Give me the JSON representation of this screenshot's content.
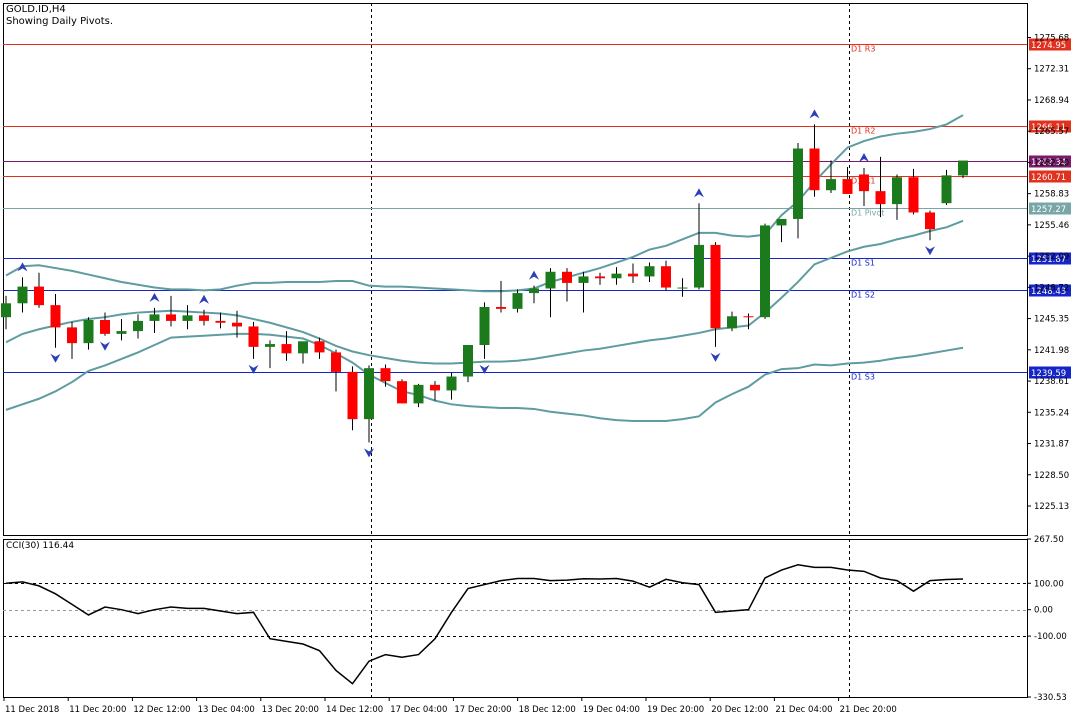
{
  "header": {
    "symbol": "GOLD.ID,H4",
    "subtitle": "Showing Daily Pivots."
  },
  "colors": {
    "bull": "#1b7a1b",
    "bear": "#ff0000",
    "wick": "#000000",
    "band": "#5e9ca0",
    "resistance": "#e0301e",
    "support": "#1525c8",
    "pivot": "#78a6a6",
    "cci_line": "#000000",
    "frame": "#000000",
    "fractal": "#2a3fb8",
    "r2_marker": "#7a1a6a"
  },
  "chart_data": [
    {
      "type": "candlestick",
      "title": "GOLD.ID,H4",
      "ylim": [
        1222.0,
        1279.4
      ],
      "y_ticks": [
        "1275.68",
        "1272.31",
        "1268.94",
        "1265.57",
        "1262.20",
        "1258.83",
        "1255.46",
        "1252.09",
        "1248.72",
        "1245.35",
        "1241.98",
        "1238.61",
        "1235.24",
        "1231.87",
        "1228.50",
        "1225.13"
      ],
      "x_labels": [
        "11 Dec 2018",
        "11 Dec 20:00",
        "12 Dec 12:00",
        "13 Dec 04:00",
        "13 Dec 20:00",
        "14 Dec 12:00",
        "17 Dec 04:00",
        "17 Dec 20:00",
        "18 Dec 12:00",
        "19 Dec 04:00",
        "19 Dec 20:00",
        "20 Dec 12:00",
        "21 Dec 04:00",
        "21 Dec 20:00"
      ],
      "candles": [
        {
          "o": 1245.5,
          "h": 1247.8,
          "l": 1244.2,
          "c": 1247.0
        },
        {
          "o": 1247.0,
          "h": 1249.8,
          "l": 1246.0,
          "c": 1248.8
        },
        {
          "o": 1248.8,
          "h": 1250.3,
          "l": 1246.5,
          "c": 1246.8
        },
        {
          "o": 1246.8,
          "h": 1248.0,
          "l": 1242.2,
          "c": 1244.4
        },
        {
          "o": 1244.4,
          "h": 1245.0,
          "l": 1241.0,
          "c": 1242.7
        },
        {
          "o": 1242.7,
          "h": 1245.5,
          "l": 1242.0,
          "c": 1245.2
        },
        {
          "o": 1245.2,
          "h": 1246.0,
          "l": 1243.5,
          "c": 1243.7
        },
        {
          "o": 1243.7,
          "h": 1245.3,
          "l": 1243.0,
          "c": 1244.0
        },
        {
          "o": 1244.0,
          "h": 1245.8,
          "l": 1243.2,
          "c": 1245.1
        },
        {
          "o": 1245.1,
          "h": 1246.5,
          "l": 1243.8,
          "c": 1245.8
        },
        {
          "o": 1245.8,
          "h": 1247.8,
          "l": 1244.5,
          "c": 1245.1
        },
        {
          "o": 1245.1,
          "h": 1246.8,
          "l": 1244.2,
          "c": 1245.7
        },
        {
          "o": 1245.7,
          "h": 1246.3,
          "l": 1244.6,
          "c": 1245.1
        },
        {
          "o": 1245.1,
          "h": 1246.0,
          "l": 1244.3,
          "c": 1244.9
        },
        {
          "o": 1244.9,
          "h": 1246.2,
          "l": 1243.3,
          "c": 1244.5
        },
        {
          "o": 1244.5,
          "h": 1245.0,
          "l": 1241.0,
          "c": 1242.3
        },
        {
          "o": 1242.3,
          "h": 1243.0,
          "l": 1240.0,
          "c": 1242.6
        },
        {
          "o": 1242.6,
          "h": 1244.0,
          "l": 1240.8,
          "c": 1241.6
        },
        {
          "o": 1241.6,
          "h": 1242.8,
          "l": 1240.5,
          "c": 1242.9
        },
        {
          "o": 1242.9,
          "h": 1243.3,
          "l": 1241.0,
          "c": 1241.7
        },
        {
          "o": 1241.7,
          "h": 1242.0,
          "l": 1237.5,
          "c": 1239.6
        },
        {
          "o": 1239.6,
          "h": 1240.2,
          "l": 1233.3,
          "c": 1234.5
        },
        {
          "o": 1234.5,
          "h": 1240.3,
          "l": 1232.0,
          "c": 1240.0
        },
        {
          "o": 1240.0,
          "h": 1240.4,
          "l": 1238.0,
          "c": 1238.6
        },
        {
          "o": 1238.6,
          "h": 1238.8,
          "l": 1236.2,
          "c": 1236.2
        },
        {
          "o": 1236.2,
          "h": 1238.3,
          "l": 1235.8,
          "c": 1238.2
        },
        {
          "o": 1238.2,
          "h": 1238.6,
          "l": 1236.5,
          "c": 1237.6
        },
        {
          "o": 1237.6,
          "h": 1239.5,
          "l": 1236.6,
          "c": 1239.1
        },
        {
          "o": 1239.1,
          "h": 1242.5,
          "l": 1238.5,
          "c": 1242.5
        },
        {
          "o": 1242.5,
          "h": 1247.1,
          "l": 1241.0,
          "c": 1246.6
        },
        {
          "o": 1246.6,
          "h": 1249.4,
          "l": 1246.0,
          "c": 1246.4
        },
        {
          "o": 1246.4,
          "h": 1248.5,
          "l": 1246.0,
          "c": 1248.1
        },
        {
          "o": 1248.1,
          "h": 1248.9,
          "l": 1247.0,
          "c": 1248.6
        },
        {
          "o": 1248.6,
          "h": 1250.8,
          "l": 1245.5,
          "c": 1250.4
        },
        {
          "o": 1250.4,
          "h": 1250.8,
          "l": 1247.2,
          "c": 1249.2
        },
        {
          "o": 1249.2,
          "h": 1250.4,
          "l": 1246.0,
          "c": 1249.9
        },
        {
          "o": 1249.9,
          "h": 1250.3,
          "l": 1249.0,
          "c": 1249.7
        },
        {
          "o": 1249.7,
          "h": 1250.9,
          "l": 1249.0,
          "c": 1250.2
        },
        {
          "o": 1250.2,
          "h": 1251.3,
          "l": 1249.2,
          "c": 1249.9
        },
        {
          "o": 1249.9,
          "h": 1251.4,
          "l": 1249.3,
          "c": 1251.0
        },
        {
          "o": 1251.0,
          "h": 1251.6,
          "l": 1248.4,
          "c": 1248.7
        },
        {
          "o": 1248.7,
          "h": 1249.7,
          "l": 1247.7,
          "c": 1248.7
        },
        {
          "o": 1248.7,
          "h": 1257.8,
          "l": 1248.5,
          "c": 1253.3
        },
        {
          "o": 1253.3,
          "h": 1253.6,
          "l": 1242.3,
          "c": 1244.3
        },
        {
          "o": 1244.3,
          "h": 1246.1,
          "l": 1244.0,
          "c": 1245.6
        },
        {
          "o": 1245.6,
          "h": 1245.9,
          "l": 1244.2,
          "c": 1245.5
        },
        {
          "o": 1245.5,
          "h": 1255.6,
          "l": 1245.3,
          "c": 1255.4
        },
        {
          "o": 1255.4,
          "h": 1256.0,
          "l": 1253.6,
          "c": 1256.1
        },
        {
          "o": 1256.1,
          "h": 1264.3,
          "l": 1254.0,
          "c": 1263.7
        },
        {
          "o": 1263.7,
          "h": 1266.3,
          "l": 1258.5,
          "c": 1259.2
        },
        {
          "o": 1259.2,
          "h": 1262.4,
          "l": 1258.9,
          "c": 1260.4
        },
        {
          "o": 1260.4,
          "h": 1261.7,
          "l": 1258.8,
          "c": 1258.8
        },
        {
          "o": 1260.9,
          "h": 1261.6,
          "l": 1257.5,
          "c": 1259.1
        },
        {
          "o": 1259.1,
          "h": 1262.8,
          "l": 1256.3,
          "c": 1257.7
        },
        {
          "o": 1257.7,
          "h": 1260.9,
          "l": 1256.0,
          "c": 1260.6
        },
        {
          "o": 1260.6,
          "h": 1261.5,
          "l": 1256.6,
          "c": 1256.8
        },
        {
          "o": 1256.8,
          "h": 1257.0,
          "l": 1253.8,
          "c": 1255.0
        },
        {
          "o": 1257.8,
          "h": 1261.4,
          "l": 1257.6,
          "c": 1260.8
        },
        {
          "o": 1260.8,
          "h": 1262.4,
          "l": 1260.5,
          "c": 1262.4
        }
      ],
      "bollinger": {
        "upper": [
          1250.0,
          1251.0,
          1251.1,
          1250.8,
          1250.5,
          1250.1,
          1249.7,
          1249.3,
          1249.0,
          1248.7,
          1248.5,
          1248.5,
          1248.4,
          1248.5,
          1248.9,
          1249.2,
          1249.2,
          1249.3,
          1249.3,
          1249.3,
          1249.4,
          1249.4,
          1248.9,
          1248.8,
          1248.8,
          1248.7,
          1248.6,
          1248.5,
          1248.4,
          1248.3,
          1248.3,
          1248.4,
          1248.6,
          1249.3,
          1249.8,
          1250.3,
          1250.8,
          1251.4,
          1252.0,
          1252.8,
          1253.2,
          1253.9,
          1254.6,
          1254.6,
          1254.3,
          1254.2,
          1254.4,
          1256.5,
          1258.0,
          1260.1,
          1262.0,
          1263.8,
          1264.5,
          1265.0,
          1265.3,
          1265.5,
          1265.8,
          1266.3,
          1267.3
        ],
        "lower": [
          1235.5,
          1236.1,
          1236.7,
          1237.5,
          1238.5,
          1239.7,
          1240.3,
          1241.0,
          1241.7,
          1242.5,
          1243.3,
          1243.4,
          1243.5,
          1243.6,
          1243.7,
          1243.7,
          1243.6,
          1243.4,
          1243.2,
          1242.5,
          1241.6,
          1240.6,
          1239.3,
          1238.4,
          1237.5,
          1237.1,
          1236.5,
          1236.1,
          1235.9,
          1235.8,
          1235.7,
          1235.7,
          1235.6,
          1235.3,
          1235.1,
          1234.9,
          1234.6,
          1234.4,
          1234.3,
          1234.3,
          1234.3,
          1234.5,
          1234.8,
          1236.3,
          1237.2,
          1238.0,
          1239.3,
          1239.9,
          1240.0,
          1240.4,
          1240.3,
          1240.5,
          1240.6,
          1240.8,
          1241.1,
          1241.3,
          1241.6,
          1241.9,
          1242.2
        ],
        "middle": [
          1242.8,
          1243.7,
          1244.2,
          1244.6,
          1245.0,
          1245.3,
          1245.5,
          1245.8,
          1246.0,
          1246.1,
          1246.2,
          1246.1,
          1246.0,
          1245.9,
          1245.7,
          1245.3,
          1244.9,
          1244.4,
          1243.9,
          1243.2,
          1242.4,
          1241.8,
          1241.4,
          1241.1,
          1240.8,
          1240.6,
          1240.5,
          1240.5,
          1240.6,
          1240.7,
          1240.7,
          1240.8,
          1241.0,
          1241.3,
          1241.6,
          1241.9,
          1242.1,
          1242.4,
          1242.7,
          1243.0,
          1243.2,
          1243.5,
          1243.8,
          1244.2,
          1244.4,
          1244.6,
          1246.0,
          1247.6,
          1249.3,
          1251.2,
          1251.9,
          1252.6,
          1253.1,
          1253.4,
          1253.9,
          1254.3,
          1254.8,
          1255.2,
          1255.9
        ]
      },
      "pivots": [
        {
          "name": "D1 R3",
          "value": 1274.95,
          "label": "1274.95",
          "kind": "resistance"
        },
        {
          "name": "D1 R2",
          "value": 1266.11,
          "label": "1266.11",
          "kind": "resistance"
        },
        {
          "name": "",
          "value": 1262.34,
          "label": "1262.34",
          "kind": "current"
        },
        {
          "name": "D1 R1",
          "value": 1260.71,
          "label": "1260.71",
          "kind": "resistance"
        },
        {
          "name": "D1 Pivot",
          "value": 1257.27,
          "label": "1257.27",
          "kind": "pivot"
        },
        {
          "name": "D1 S1",
          "value": 1251.87,
          "label": "1251.87",
          "kind": "support"
        },
        {
          "name": "D1 S2",
          "value": 1248.43,
          "label": "1248.43",
          "kind": "support"
        },
        {
          "name": "D1 S3",
          "value": 1239.59,
          "label": "1239.59",
          "kind": "support"
        }
      ],
      "fractals_up": [
        1,
        9,
        12,
        32,
        42,
        49,
        52
      ],
      "fractals_down": [
        3,
        6,
        15,
        22,
        29,
        43,
        56
      ]
    },
    {
      "type": "line",
      "title": "CCI(30) 116.44",
      "name": "CCI(30)",
      "ylim": [
        -330.53,
        267.5
      ],
      "y_ticks": [
        "267.50",
        "100.00",
        "0.00",
        "-100.00",
        "-330.53"
      ],
      "levels": [
        100,
        0,
        -100
      ],
      "values": [
        100,
        105,
        90,
        60,
        20,
        -20,
        10,
        0,
        -15,
        0,
        10,
        5,
        5,
        -5,
        -15,
        -10,
        -110,
        -120,
        -130,
        -155,
        -230,
        -280,
        -195,
        -170,
        -180,
        -170,
        -110,
        -10,
        80,
        95,
        110,
        118,
        118,
        110,
        112,
        117,
        116,
        118,
        108,
        85,
        115,
        102,
        95,
        -10,
        -5,
        0,
        120,
        150,
        170,
        160,
        160,
        150,
        145,
        120,
        110,
        70,
        110,
        114,
        116
      ],
      "value_label": "116.44"
    }
  ]
}
